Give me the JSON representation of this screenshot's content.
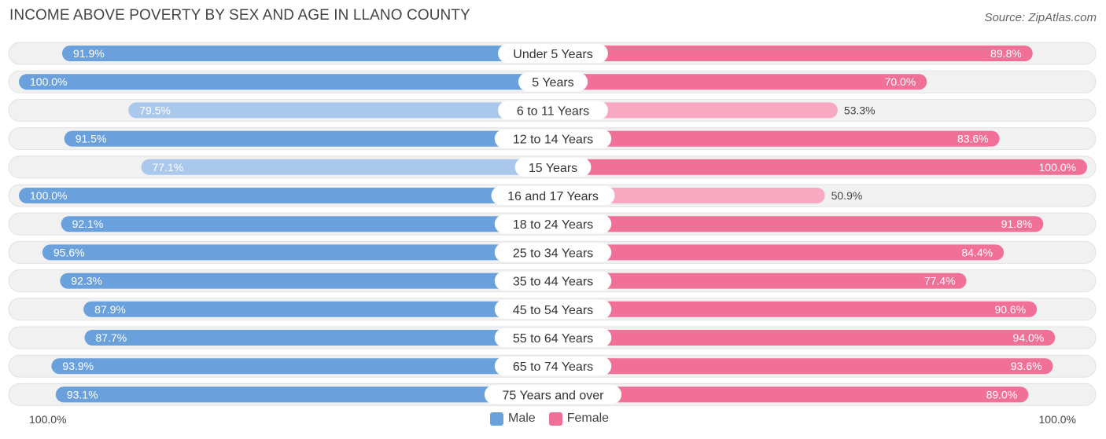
{
  "title": "INCOME ABOVE POVERTY BY SEX AND AGE IN LLANO COUNTY",
  "source": "Source: ZipAtlas.com",
  "colors": {
    "male_strong": "#6aa0dc",
    "male_light": "#a9c8ec",
    "female_strong": "#f07097",
    "female_light": "#f7a9c1",
    "track": "#f1f1f1"
  },
  "chart_data": {
    "type": "bar",
    "orientation": "horizontal-diverging",
    "title": "INCOME ABOVE POVERTY BY SEX AND AGE IN LLANO COUNTY",
    "categories": [
      "Under 5 Years",
      "5 Years",
      "6 to 11 Years",
      "12 to 14 Years",
      "15 Years",
      "16 and 17 Years",
      "18 to 24 Years",
      "25 to 34 Years",
      "35 to 44 Years",
      "45 to 54 Years",
      "55 to 64 Years",
      "65 to 74 Years",
      "75 Years and over"
    ],
    "series": [
      {
        "name": "Male",
        "values": [
          91.9,
          100.0,
          79.5,
          91.5,
          77.1,
          100.0,
          92.1,
          95.6,
          92.3,
          87.9,
          87.7,
          93.9,
          93.1
        ]
      },
      {
        "name": "Female",
        "values": [
          89.8,
          70.0,
          53.3,
          83.6,
          100.0,
          50.9,
          91.8,
          84.4,
          77.4,
          90.6,
          94.0,
          93.6,
          89.0
        ]
      }
    ],
    "labels": {
      "Male": [
        "91.9%",
        "100.0%",
        "79.5%",
        "91.5%",
        "77.1%",
        "100.0%",
        "92.1%",
        "95.6%",
        "92.3%",
        "87.9%",
        "87.7%",
        "93.9%",
        "93.1%"
      ],
      "Female": [
        "89.8%",
        "70.0%",
        "53.3%",
        "83.6%",
        "100.0%",
        "50.9%",
        "91.8%",
        "84.4%",
        "77.4%",
        "90.6%",
        "94.0%",
        "93.6%",
        "89.0%"
      ]
    },
    "xlim": [
      0,
      100
    ],
    "axis_left_label": "100.0%",
    "axis_right_label": "100.0%",
    "legend": [
      "Male",
      "Female"
    ],
    "legend_position": "bottom-center"
  }
}
